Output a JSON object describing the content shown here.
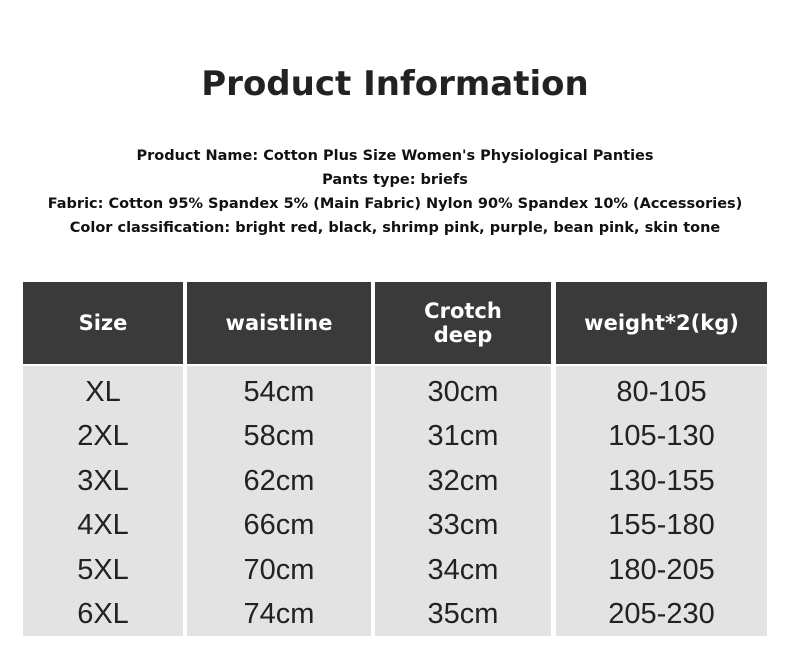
{
  "title": "Product Information",
  "info": [
    "Product Name: Cotton Plus Size Women's Physiological Panties",
    "Pants type: briefs",
    "Fabric: Cotton 95% Spandex 5% (Main Fabric) Nylon 90% Spandex 10% (Accessories)",
    "Color classification: bright red, black, shrimp pink, purple, bean pink, skin tone"
  ],
  "table": {
    "headers": [
      "Size",
      "waistline",
      "Crotch deep",
      "weight*2(kg)"
    ],
    "columns": [
      [
        "XL",
        "2XL",
        "3XL",
        "4XL",
        "5XL",
        "6XL"
      ],
      [
        "54cm",
        "58cm",
        "62cm",
        "66cm",
        "70cm",
        "74cm"
      ],
      [
        "30cm",
        "31cm",
        "32cm",
        "33cm",
        "34cm",
        "35cm"
      ],
      [
        "80-105",
        "105-130",
        "130-155",
        "155-180",
        "180-205",
        "205-230"
      ]
    ]
  }
}
